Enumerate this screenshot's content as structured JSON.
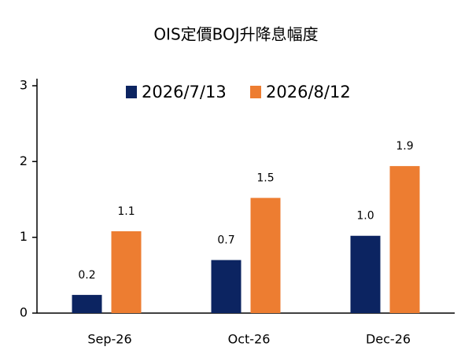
{
  "chart_data": {
    "type": "bar",
    "title": "OIS定價BOJ升降息幅度",
    "categories": [
      "Sep-26",
      "Oct-26",
      "Dec-26"
    ],
    "series": [
      {
        "name": "2026/7/13",
        "color": "#0c2461",
        "values": [
          0.24,
          0.7,
          1.02
        ],
        "value_labels": [
          "0.2",
          "0.7",
          "1.0"
        ]
      },
      {
        "name": "2026/8/12",
        "color": "#ed7d31",
        "values": [
          1.08,
          1.52,
          1.94
        ],
        "value_labels": [
          "1.1",
          "1.5",
          "1.9"
        ]
      }
    ],
    "ylim": [
      0,
      3
    ],
    "yticks": [
      0,
      1,
      2,
      3
    ],
    "grid": false,
    "legend": "top"
  }
}
